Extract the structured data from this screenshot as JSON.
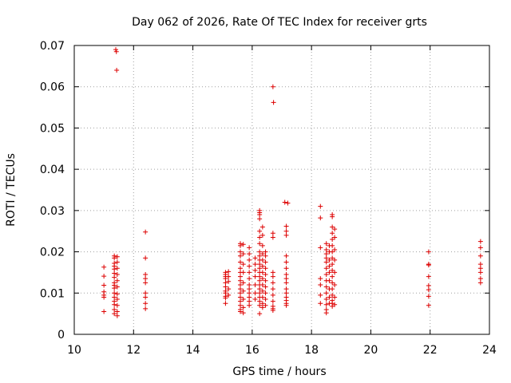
{
  "chart_data": {
    "type": "scatter",
    "title": "Day 062 of 2026, Rate Of TEC Index for receiver grts",
    "xlabel": "GPS time / hours",
    "ylabel": "ROTI / TECUs",
    "xlim": [
      10,
      24
    ],
    "ylim": [
      0,
      0.07
    ],
    "x_ticks": [
      10,
      12,
      14,
      16,
      18,
      20,
      22,
      24
    ],
    "x_tick_labels": [
      "10",
      "12",
      "14",
      "16",
      "18",
      "20",
      "22",
      "24"
    ],
    "y_ticks": [
      0,
      0.01,
      0.02,
      0.03,
      0.04,
      0.05,
      0.06,
      0.07
    ],
    "y_tick_labels": [
      "0",
      "0.01",
      "0.02",
      "0.03",
      "0.04",
      "0.05",
      "0.06",
      "0.07"
    ],
    "grid": true,
    "marker": "plus",
    "series_color": "#dd0000",
    "points": [
      [
        11.0,
        0.0163
      ],
      [
        11.0,
        0.0141
      ],
      [
        11.0,
        0.0119
      ],
      [
        11.0,
        0.0103
      ],
      [
        11.0,
        0.0095
      ],
      [
        11.0,
        0.009
      ],
      [
        11.0,
        0.0055
      ],
      [
        11.35,
        0.019
      ],
      [
        11.35,
        0.0185
      ],
      [
        11.35,
        0.0172
      ],
      [
        11.35,
        0.0165
      ],
      [
        11.35,
        0.0158
      ],
      [
        11.35,
        0.0148
      ],
      [
        11.35,
        0.0138
      ],
      [
        11.35,
        0.0125
      ],
      [
        11.35,
        0.0119
      ],
      [
        11.35,
        0.0112
      ],
      [
        11.35,
        0.01
      ],
      [
        11.35,
        0.009
      ],
      [
        11.35,
        0.008
      ],
      [
        11.35,
        0.0072
      ],
      [
        11.35,
        0.006
      ],
      [
        11.35,
        0.005
      ],
      [
        11.45,
        0.0188
      ],
      [
        11.45,
        0.0175
      ],
      [
        11.45,
        0.016
      ],
      [
        11.45,
        0.0145
      ],
      [
        11.45,
        0.013
      ],
      [
        11.45,
        0.0115
      ],
      [
        11.45,
        0.0098
      ],
      [
        11.45,
        0.0085
      ],
      [
        11.45,
        0.007
      ],
      [
        11.45,
        0.0055
      ],
      [
        11.45,
        0.0045
      ],
      [
        11.4,
        0.069
      ],
      [
        11.42,
        0.0685
      ],
      [
        11.43,
        0.064
      ],
      [
        12.4,
        0.0248
      ],
      [
        12.4,
        0.0185
      ],
      [
        12.4,
        0.0145
      ],
      [
        12.4,
        0.0135
      ],
      [
        12.4,
        0.0125
      ],
      [
        12.4,
        0.01
      ],
      [
        12.4,
        0.009
      ],
      [
        12.4,
        0.0075
      ],
      [
        12.4,
        0.0062
      ],
      [
        15.1,
        0.015
      ],
      [
        15.1,
        0.0145
      ],
      [
        15.1,
        0.014
      ],
      [
        15.1,
        0.0135
      ],
      [
        15.1,
        0.0125
      ],
      [
        15.1,
        0.0115
      ],
      [
        15.1,
        0.0105
      ],
      [
        15.1,
        0.01
      ],
      [
        15.1,
        0.0092
      ],
      [
        15.1,
        0.0088
      ],
      [
        15.1,
        0.0075
      ],
      [
        15.2,
        0.0152
      ],
      [
        15.2,
        0.014
      ],
      [
        15.2,
        0.0128
      ],
      [
        15.2,
        0.011
      ],
      [
        15.2,
        0.0095
      ],
      [
        15.6,
        0.022
      ],
      [
        15.6,
        0.0215
      ],
      [
        15.6,
        0.02
      ],
      [
        15.6,
        0.019
      ],
      [
        15.6,
        0.0175
      ],
      [
        15.6,
        0.016
      ],
      [
        15.6,
        0.015
      ],
      [
        15.6,
        0.014
      ],
      [
        15.6,
        0.013
      ],
      [
        15.6,
        0.012
      ],
      [
        15.6,
        0.011
      ],
      [
        15.6,
        0.01
      ],
      [
        15.6,
        0.009
      ],
      [
        15.6,
        0.008
      ],
      [
        15.6,
        0.007
      ],
      [
        15.6,
        0.006
      ],
      [
        15.6,
        0.0055
      ],
      [
        15.7,
        0.0218
      ],
      [
        15.7,
        0.0195
      ],
      [
        15.7,
        0.017
      ],
      [
        15.7,
        0.015
      ],
      [
        15.7,
        0.0125
      ],
      [
        15.7,
        0.0105
      ],
      [
        15.7,
        0.0085
      ],
      [
        15.7,
        0.0065
      ],
      [
        15.7,
        0.0052
      ],
      [
        15.9,
        0.021
      ],
      [
        15.9,
        0.0195
      ],
      [
        15.9,
        0.018
      ],
      [
        15.9,
        0.0165
      ],
      [
        15.9,
        0.015
      ],
      [
        15.9,
        0.0135
      ],
      [
        15.9,
        0.012
      ],
      [
        15.9,
        0.011
      ],
      [
        15.9,
        0.01
      ],
      [
        15.9,
        0.009
      ],
      [
        15.9,
        0.008
      ],
      [
        15.9,
        0.007
      ],
      [
        16.1,
        0.0185
      ],
      [
        16.1,
        0.017
      ],
      [
        16.1,
        0.0155
      ],
      [
        16.1,
        0.014
      ],
      [
        16.1,
        0.012
      ],
      [
        16.1,
        0.01
      ],
      [
        16.1,
        0.0085
      ],
      [
        16.25,
        0.03
      ],
      [
        16.25,
        0.0295
      ],
      [
        16.25,
        0.029
      ],
      [
        16.25,
        0.028
      ],
      [
        16.25,
        0.025
      ],
      [
        16.25,
        0.0235
      ],
      [
        16.25,
        0.022
      ],
      [
        16.25,
        0.02
      ],
      [
        16.25,
        0.019
      ],
      [
        16.25,
        0.018
      ],
      [
        16.25,
        0.017
      ],
      [
        16.25,
        0.016
      ],
      [
        16.25,
        0.015
      ],
      [
        16.25,
        0.014
      ],
      [
        16.25,
        0.013
      ],
      [
        16.25,
        0.012
      ],
      [
        16.25,
        0.011
      ],
      [
        16.25,
        0.01
      ],
      [
        16.25,
        0.009
      ],
      [
        16.25,
        0.008
      ],
      [
        16.25,
        0.007
      ],
      [
        16.25,
        0.005
      ],
      [
        16.35,
        0.026
      ],
      [
        16.35,
        0.024
      ],
      [
        16.35,
        0.0215
      ],
      [
        16.35,
        0.0195
      ],
      [
        16.35,
        0.018
      ],
      [
        16.35,
        0.0165
      ],
      [
        16.35,
        0.015
      ],
      [
        16.35,
        0.0135
      ],
      [
        16.35,
        0.012
      ],
      [
        16.35,
        0.0105
      ],
      [
        16.35,
        0.009
      ],
      [
        16.35,
        0.0075
      ],
      [
        16.35,
        0.0065
      ],
      [
        16.45,
        0.02
      ],
      [
        16.45,
        0.019
      ],
      [
        16.45,
        0.0175
      ],
      [
        16.45,
        0.016
      ],
      [
        16.45,
        0.0145
      ],
      [
        16.45,
        0.013
      ],
      [
        16.45,
        0.0115
      ],
      [
        16.45,
        0.01
      ],
      [
        16.45,
        0.0085
      ],
      [
        16.45,
        0.007
      ],
      [
        16.7,
        0.06
      ],
      [
        16.72,
        0.0562
      ],
      [
        16.7,
        0.0245
      ],
      [
        16.7,
        0.0235
      ],
      [
        16.7,
        0.015
      ],
      [
        16.7,
        0.014
      ],
      [
        16.7,
        0.0125
      ],
      [
        16.7,
        0.011
      ],
      [
        16.7,
        0.0095
      ],
      [
        16.7,
        0.008
      ],
      [
        16.7,
        0.0068
      ],
      [
        16.7,
        0.0062
      ],
      [
        16.7,
        0.0058
      ],
      [
        17.1,
        0.032
      ],
      [
        17.2,
        0.0318
      ],
      [
        17.15,
        0.0262
      ],
      [
        17.15,
        0.025
      ],
      [
        17.15,
        0.024
      ],
      [
        17.15,
        0.019
      ],
      [
        17.15,
        0.0175
      ],
      [
        17.15,
        0.016
      ],
      [
        17.15,
        0.0145
      ],
      [
        17.15,
        0.0135
      ],
      [
        17.15,
        0.0125
      ],
      [
        17.15,
        0.011
      ],
      [
        17.15,
        0.01
      ],
      [
        17.15,
        0.009
      ],
      [
        17.15,
        0.0082
      ],
      [
        17.15,
        0.0075
      ],
      [
        17.15,
        0.007
      ],
      [
        18.3,
        0.031
      ],
      [
        18.3,
        0.0282
      ],
      [
        18.3,
        0.021
      ],
      [
        18.3,
        0.0135
      ],
      [
        18.3,
        0.012
      ],
      [
        18.3,
        0.0095
      ],
      [
        18.3,
        0.0075
      ],
      [
        18.5,
        0.022
      ],
      [
        18.5,
        0.0205
      ],
      [
        18.5,
        0.0195
      ],
      [
        18.5,
        0.0185
      ],
      [
        18.5,
        0.0175
      ],
      [
        18.5,
        0.016
      ],
      [
        18.5,
        0.0145
      ],
      [
        18.5,
        0.013
      ],
      [
        18.5,
        0.0115
      ],
      [
        18.5,
        0.01
      ],
      [
        18.5,
        0.0085
      ],
      [
        18.5,
        0.0072
      ],
      [
        18.5,
        0.006
      ],
      [
        18.5,
        0.0052
      ],
      [
        18.6,
        0.0215
      ],
      [
        18.6,
        0.02
      ],
      [
        18.6,
        0.018
      ],
      [
        18.6,
        0.0165
      ],
      [
        18.6,
        0.015
      ],
      [
        18.6,
        0.013
      ],
      [
        18.6,
        0.011
      ],
      [
        18.6,
        0.009
      ],
      [
        18.6,
        0.0075
      ],
      [
        18.7,
        0.029
      ],
      [
        18.7,
        0.0285
      ],
      [
        18.7,
        0.026
      ],
      [
        18.7,
        0.0245
      ],
      [
        18.7,
        0.023
      ],
      [
        18.7,
        0.0215
      ],
      [
        18.7,
        0.02
      ],
      [
        18.7,
        0.0185
      ],
      [
        18.7,
        0.017
      ],
      [
        18.7,
        0.0155
      ],
      [
        18.7,
        0.014
      ],
      [
        18.7,
        0.0125
      ],
      [
        18.7,
        0.011
      ],
      [
        18.7,
        0.0095
      ],
      [
        18.7,
        0.0082
      ],
      [
        18.7,
        0.0075
      ],
      [
        18.7,
        0.0068
      ],
      [
        18.78,
        0.0255
      ],
      [
        18.78,
        0.0235
      ],
      [
        18.78,
        0.0205
      ],
      [
        18.78,
        0.018
      ],
      [
        18.78,
        0.015
      ],
      [
        18.78,
        0.012
      ],
      [
        18.78,
        0.009
      ],
      [
        18.78,
        0.0072
      ],
      [
        21.95,
        0.02
      ],
      [
        21.95,
        0.017
      ],
      [
        21.95,
        0.0168
      ],
      [
        21.95,
        0.014
      ],
      [
        21.95,
        0.0118
      ],
      [
        21.95,
        0.0108
      ],
      [
        21.95,
        0.0092
      ],
      [
        21.95,
        0.007
      ],
      [
        23.7,
        0.0225
      ],
      [
        23.7,
        0.021
      ],
      [
        23.7,
        0.019
      ],
      [
        23.7,
        0.017
      ],
      [
        23.7,
        0.016
      ],
      [
        23.7,
        0.015
      ],
      [
        23.7,
        0.0135
      ],
      [
        23.7,
        0.0125
      ]
    ]
  }
}
